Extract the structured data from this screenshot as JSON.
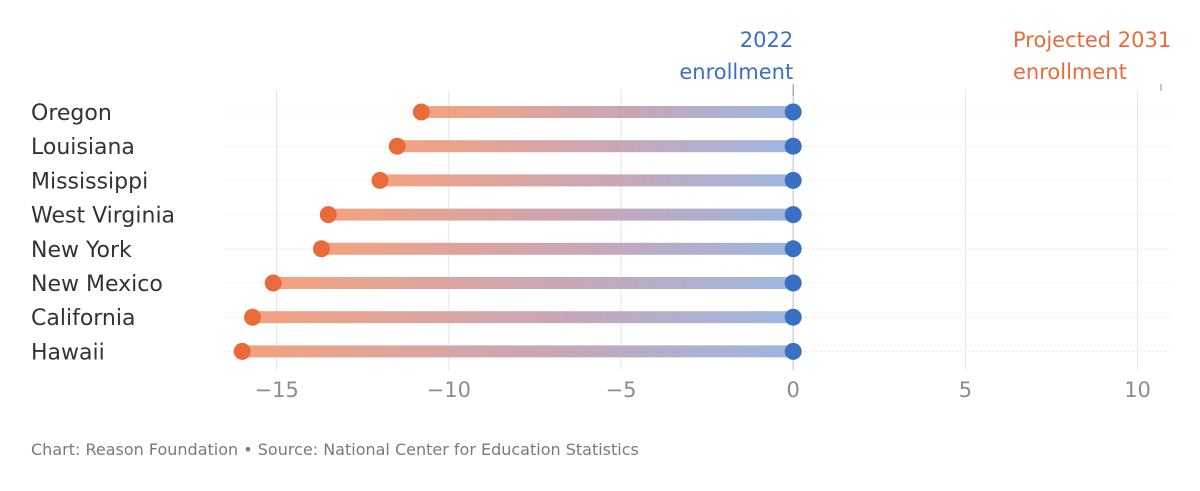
{
  "chart_data": {
    "type": "dumbbell",
    "categories": [
      "Oregon",
      "Louisiana",
      "Mississippi",
      "West Virginia",
      "New York",
      "New Mexico",
      "California",
      "Hawaii"
    ],
    "series": [
      {
        "name": "2022 enrollment",
        "label_lines": [
          "2022",
          "enrollment"
        ],
        "values": [
          0,
          0,
          0,
          0,
          0,
          0,
          0,
          0
        ],
        "color": "#3a6fc4"
      },
      {
        "name": "Projected 2031 enrollment",
        "label_lines": [
          "Projected 2031",
          "enrollment"
        ],
        "values": [
          -10.8,
          -11.5,
          -12.0,
          -13.5,
          -13.7,
          -15.1,
          -15.7,
          -16.0
        ],
        "color": "#ea6a3a"
      }
    ],
    "x_ticks": [
      -15,
      -10,
      -5,
      0,
      5,
      10
    ],
    "x_tick_labels": [
      "−15",
      "−10",
      "−5",
      "0",
      "5",
      "10"
    ],
    "xlim": [
      -16.5,
      11
    ],
    "grid": true
  },
  "footer": {
    "text": "Chart: Reason Foundation • Source: National Center for Education Statistics"
  }
}
